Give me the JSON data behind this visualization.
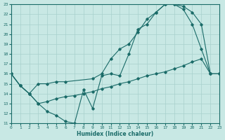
{
  "xlabel": "Humidex (Indice chaleur)",
  "xlim": [
    0,
    23
  ],
  "ylim": [
    11,
    23
  ],
  "yticks": [
    11,
    12,
    13,
    14,
    15,
    16,
    17,
    18,
    19,
    20,
    21,
    22,
    23
  ],
  "xticks": [
    0,
    1,
    2,
    3,
    4,
    5,
    6,
    7,
    8,
    9,
    10,
    11,
    12,
    13,
    14,
    15,
    16,
    17,
    18,
    19,
    20,
    21,
    22,
    23
  ],
  "bg_color": "#c8e8e4",
  "line_color": "#1a6b68",
  "grid_color": "#a8d0cc",
  "curve1_x": [
    0,
    1,
    2,
    3,
    4,
    5,
    6,
    7,
    8,
    9,
    10,
    11,
    12,
    13,
    14,
    15,
    16,
    17,
    18,
    19,
    20,
    21,
    22,
    23
  ],
  "curve1_y": [
    16,
    14.8,
    14.0,
    13.0,
    12.2,
    11.8,
    11.2,
    11.0,
    14.4,
    12.5,
    15.8,
    16.0,
    15.8,
    18.0,
    20.5,
    21.0,
    22.2,
    23.0,
    23.0,
    22.5,
    21.0,
    18.5,
    16.0,
    16.0
  ],
  "curve2_x": [
    0,
    1,
    2,
    3,
    4,
    5,
    6,
    9,
    10,
    11,
    12,
    13,
    14,
    15,
    16,
    17,
    18,
    19,
    20,
    21,
    22,
    23
  ],
  "curve2_y": [
    16,
    14.8,
    14.0,
    15.0,
    15.0,
    15.2,
    15.2,
    15.5,
    16.0,
    17.5,
    18.5,
    19.0,
    20.2,
    21.5,
    22.2,
    23.0,
    23.0,
    22.8,
    22.2,
    21.0,
    16.0,
    16.0
  ],
  "curve3_x": [
    0,
    1,
    2,
    3,
    4,
    5,
    6,
    7,
    8,
    9,
    10,
    11,
    12,
    13,
    14,
    15,
    16,
    17,
    18,
    19,
    20,
    21,
    22,
    23
  ],
  "curve3_y": [
    16,
    14.8,
    14.0,
    13.0,
    13.2,
    13.5,
    13.7,
    13.8,
    14.0,
    14.2,
    14.5,
    14.7,
    15.0,
    15.2,
    15.5,
    15.8,
    16.0,
    16.2,
    16.5,
    16.8,
    17.2,
    17.5,
    16.0,
    16.0
  ]
}
